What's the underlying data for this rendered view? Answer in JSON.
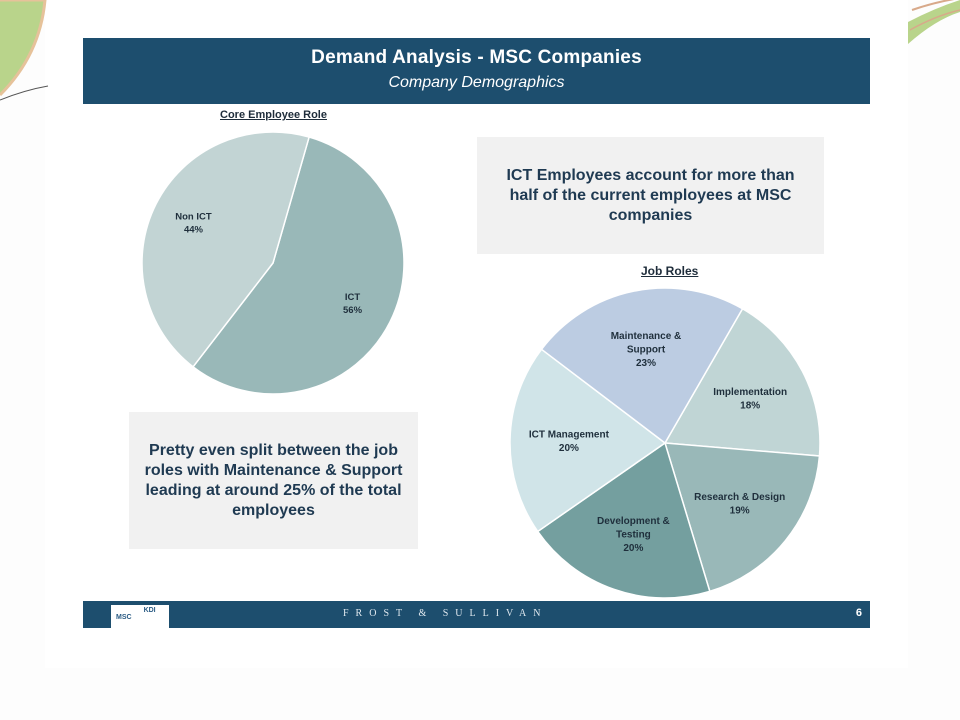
{
  "header": {
    "title": "Demand Analysis  - MSC Companies",
    "subtitle": "Company Demographics"
  },
  "callouts": {
    "top_right": "ICT Employees account for more than half of the current employees at MSC companies",
    "bottom_left": "Pretty even split between the job roles with Maintenance & Support leading at around 25% of the total employees"
  },
  "footer": {
    "brand": "FROST & SULLIVAN",
    "page_number": "6",
    "logo_left": "MSC",
    "logo_right": "KDI"
  },
  "colors": {
    "header_bg": "#1d4e6e",
    "callout_bg": "#f1f1f1"
  },
  "chart_data": [
    {
      "type": "pie",
      "title": "Core Employee Role",
      "slices": [
        {
          "label": "ICT",
          "value": 56,
          "value_label": "56%",
          "color": "#99b8b8"
        },
        {
          "label": "Non ICT",
          "value": 44,
          "value_label": "44%",
          "color": "#c2d4d4"
        }
      ]
    },
    {
      "type": "pie",
      "title": "Job Roles",
      "slices": [
        {
          "label": "Implementation",
          "value": 18,
          "value_label": "18%",
          "color": "#c0d5d5"
        },
        {
          "label": "Research & Design",
          "value": 19,
          "value_label": "19%",
          "color": "#99b8b8"
        },
        {
          "label": "Development & Testing",
          "value": 20,
          "value_label": "20%",
          "color": "#749f9f"
        },
        {
          "label": "ICT Management",
          "value": 20,
          "value_label": "20%",
          "color": "#d0e4e8"
        },
        {
          "label": "Maintenance & Support",
          "value": 23,
          "value_label": "23%",
          "color": "#bccce2"
        }
      ]
    }
  ]
}
